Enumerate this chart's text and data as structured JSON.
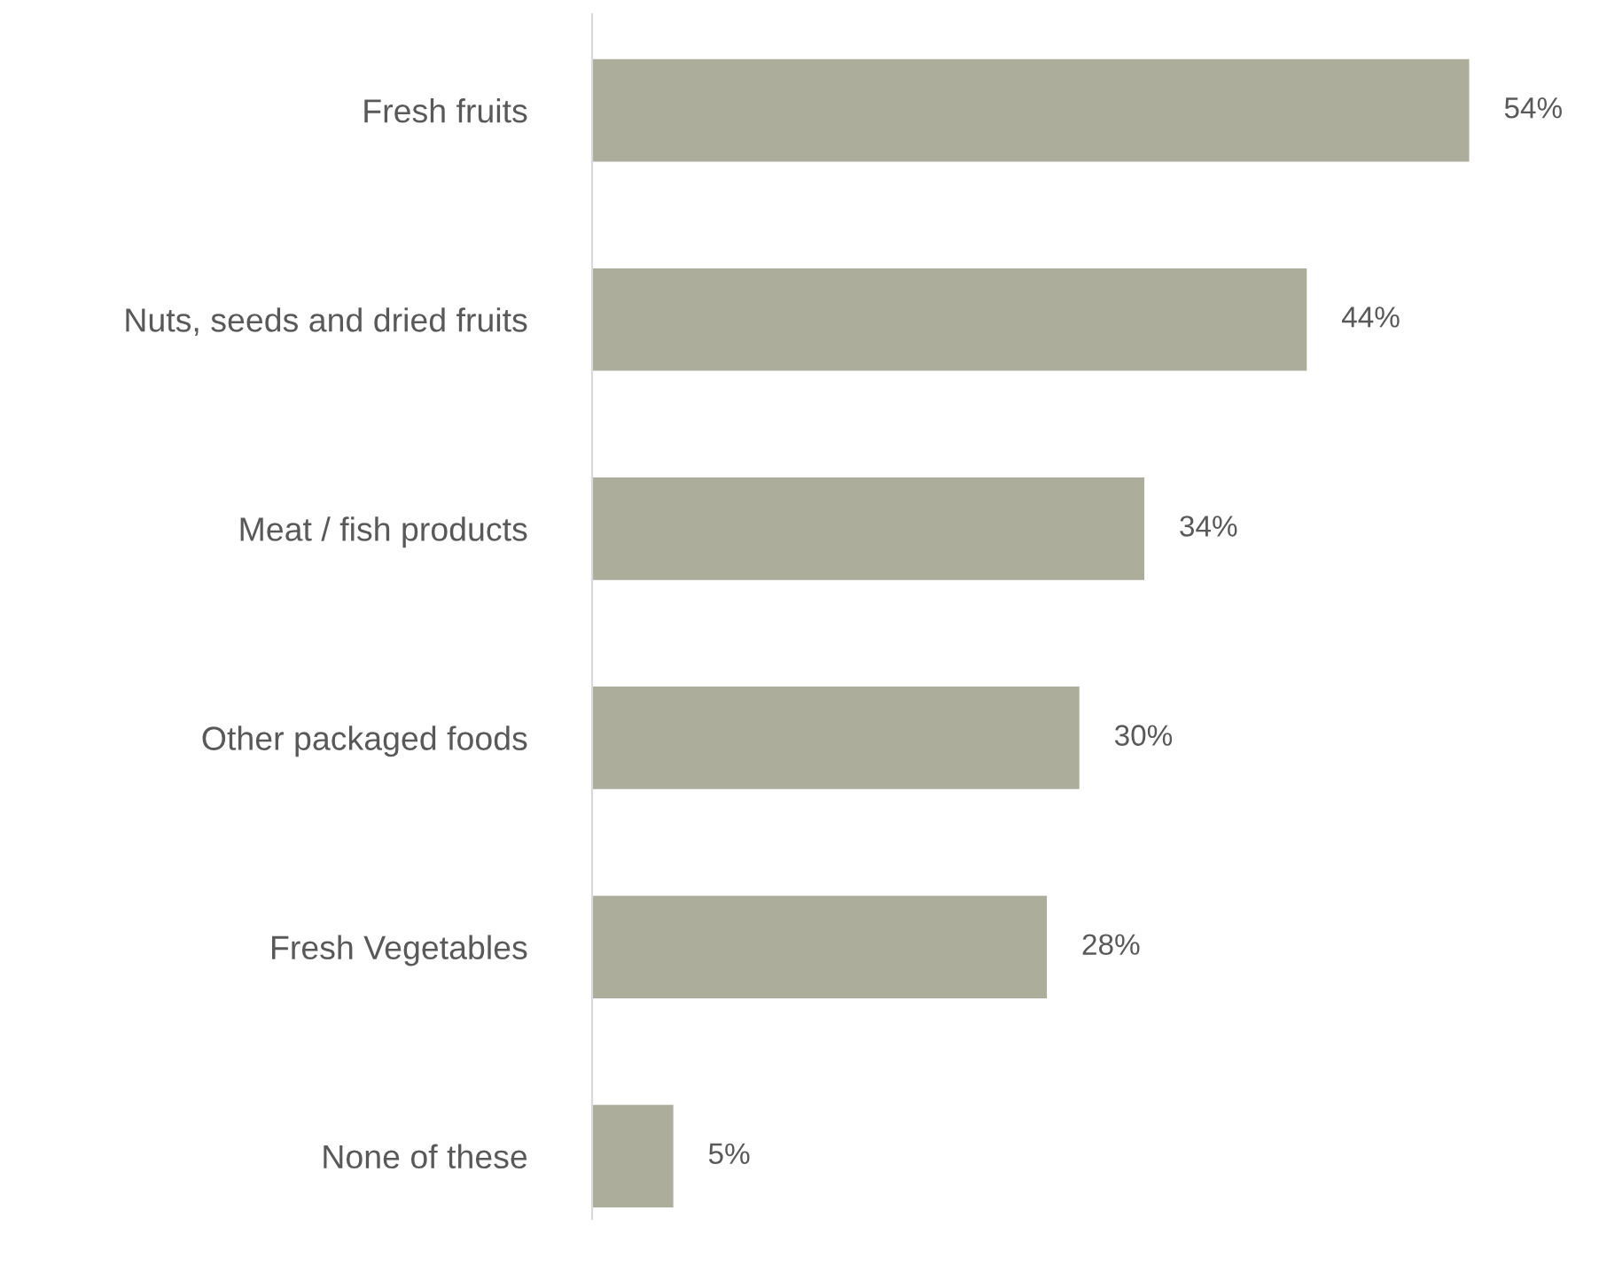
{
  "chart_data": {
    "type": "bar",
    "orientation": "horizontal",
    "categories": [
      "Fresh fruits",
      "Nuts, seeds and dried fruits",
      "Meat / fish products",
      "Other packaged foods",
      "Fresh Vegetables",
      "None of these"
    ],
    "values": [
      54,
      44,
      34,
      30,
      28,
      5
    ],
    "value_labels": [
      "54%",
      "44%",
      "34%",
      "30%",
      "28%",
      "5%"
    ],
    "color": "#adad9c",
    "tick_labels": "y",
    "grid": false,
    "legend": false
  }
}
